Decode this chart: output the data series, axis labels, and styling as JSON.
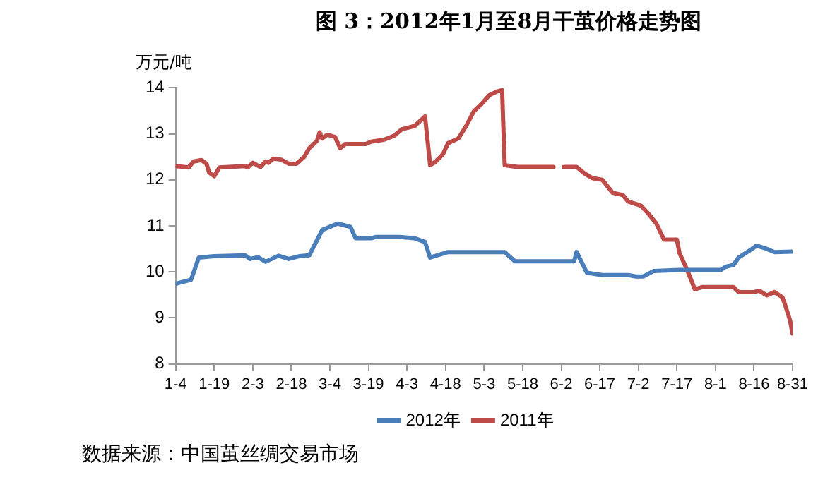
{
  "chart_data": {
    "type": "line",
    "title": "图 3：2012年1月至8月干茧价格走势图",
    "ylabel": "万元/吨",
    "annotations": [
      "数据来源：中国茧丝绸交易市场"
    ],
    "legend": "bottom",
    "marker": "none",
    "line_style": "solid",
    "xlim": [
      "--01-04",
      "--08-31"
    ],
    "xticks": [
      {
        "value": "--01-04",
        "label": "1-4"
      },
      {
        "value": "--01-19",
        "label": "1-19"
      },
      {
        "value": "--02-03",
        "label": "2-3"
      },
      {
        "value": "--02-18",
        "label": "2-18"
      },
      {
        "value": "--03-04",
        "label": "3-4"
      },
      {
        "value": "--03-19",
        "label": "3-19"
      },
      {
        "value": "--04-03",
        "label": "4-3"
      },
      {
        "value": "--04-18",
        "label": "4-18"
      },
      {
        "value": "--05-03",
        "label": "5-3"
      },
      {
        "value": "--05-18",
        "label": "5-18"
      },
      {
        "value": "--06-02",
        "label": "6-2"
      },
      {
        "value": "--06-17",
        "label": "6-17"
      },
      {
        "value": "--07-02",
        "label": "7-2"
      },
      {
        "value": "--07-17",
        "label": "7-17"
      },
      {
        "value": "--08-01",
        "label": "8-1"
      },
      {
        "value": "--08-16",
        "label": "8-16"
      },
      {
        "value": "--08-31",
        "label": "8-31"
      }
    ],
    "ylim": [
      8,
      14
    ],
    "yticks": [
      8,
      9,
      10,
      11,
      12,
      13,
      14
    ],
    "series": [
      {
        "name": "2012年",
        "color": "#4a7ebb",
        "x": [
          "--01-04",
          "--01-10",
          "--01-13",
          "--01-19",
          "--01-31",
          "--02-02",
          "--02-05",
          "--02-08",
          "--02-13",
          "--02-17",
          "--02-21",
          "--02-25",
          "--03-01",
          "--03-07",
          "--03-12",
          "--03-14",
          "--03-20",
          "--03-22",
          "--03-31",
          "--04-06",
          "--04-10",
          "--04-12",
          "--04-19",
          "--05-11",
          "--05-15",
          "--06-07",
          "--06-08",
          "--06-12",
          "--06-18",
          "--06-28",
          "--07-01",
          "--07-04",
          "--07-08",
          "--07-18",
          "--08-03",
          "--08-05",
          "--08-08",
          "--08-10",
          "--08-15",
          "--08-17",
          "--08-20",
          "--08-24",
          "--08-31"
        ],
        "values": [
          9.74,
          9.83,
          10.31,
          10.34,
          10.36,
          10.28,
          10.32,
          10.22,
          10.35,
          10.28,
          10.34,
          10.36,
          10.91,
          11.05,
          10.98,
          10.73,
          10.73,
          10.76,
          10.76,
          10.73,
          10.65,
          10.31,
          10.43,
          10.43,
          10.23,
          10.23,
          10.43,
          9.98,
          9.93,
          9.93,
          9.9,
          9.9,
          10.02,
          10.04,
          10.04,
          10.11,
          10.15,
          10.31,
          10.49,
          10.57,
          10.52,
          10.43,
          10.44
        ]
      },
      {
        "name": "2011年",
        "color": "#be4b48",
        "x": [
          "--01-04",
          "--01-09",
          "--01-11",
          "--01-14",
          "--01-16",
          "--01-17",
          "--01-19",
          "--01-21",
          "--01-31",
          "--02-01",
          "--02-03",
          "--02-06",
          "--02-08",
          "--02-09",
          "--02-11",
          "--02-14",
          "--02-17",
          "--02-20",
          "--02-23",
          "--02-25",
          "--02-28",
          "--02-29",
          "--03-01",
          "--03-03",
          "--03-06",
          "--03-08",
          "--03-10",
          "--03-18",
          "--03-20",
          "--03-25",
          "--03-29",
          "--04-01",
          "--04-06",
          "--04-10",
          "--04-12",
          "--04-14",
          "--04-17",
          "--04-19",
          "--04-23",
          "--04-26",
          "--04-29",
          "--05-02",
          "--05-05",
          "--05-08",
          "--05-10",
          "--05-11",
          "--05-16",
          "--05-30",
          "--06-01",
          "--06-03",
          "--06-08",
          "--06-11",
          "--06-14",
          "--06-18",
          "--06-22",
          "--06-26",
          "--06-28",
          "--07-03",
          "--07-06",
          "--07-09",
          "--07-12",
          "--07-17",
          "--07-18",
          "--07-21",
          "--07-24",
          "--07-27",
          "--08-03",
          "--08-08",
          "--08-10",
          "--08-16",
          "--08-18",
          "--08-21",
          "--08-24",
          "--08-27",
          "--08-28",
          "--08-30",
          "--08-31"
        ],
        "values": [
          12.3,
          12.27,
          12.4,
          12.43,
          12.35,
          12.16,
          12.08,
          12.27,
          12.3,
          12.27,
          12.37,
          12.28,
          12.4,
          12.37,
          12.46,
          12.44,
          12.35,
          12.35,
          12.5,
          12.69,
          12.85,
          13.03,
          12.9,
          12.98,
          12.93,
          12.69,
          12.78,
          12.78,
          12.83,
          12.87,
          12.96,
          13.1,
          13.17,
          13.38,
          12.32,
          12.39,
          12.56,
          12.8,
          12.9,
          13.17,
          13.49,
          13.65,
          13.84,
          13.92,
          13.95,
          12.32,
          12.28,
          12.28,
          null,
          12.28,
          12.28,
          12.14,
          12.04,
          12.0,
          11.72,
          11.67,
          11.53,
          11.44,
          11.26,
          11.05,
          10.7,
          10.7,
          10.41,
          10.04,
          9.62,
          9.67,
          9.67,
          9.67,
          9.56,
          9.56,
          9.59,
          9.49,
          9.56,
          9.45,
          9.3,
          8.95,
          8.66
        ]
      }
    ]
  }
}
